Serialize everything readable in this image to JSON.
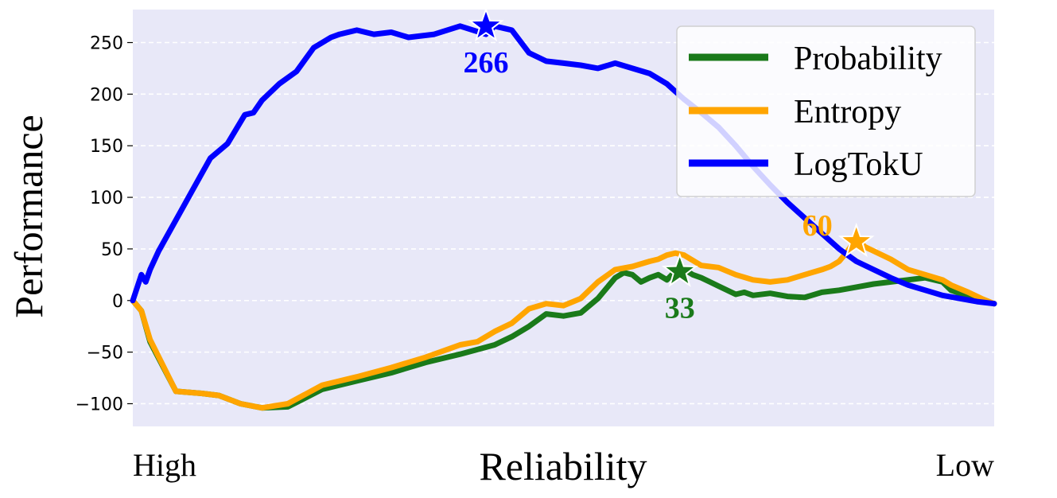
{
  "chart_data": {
    "type": "line",
    "xlabel": "Reliability",
    "x_end_labels": {
      "left": "High",
      "right": "Low"
    },
    "ylabel": "Performance",
    "ylim": [
      -122,
      282
    ],
    "yticks": [
      -100,
      -50,
      0,
      50,
      100,
      150,
      200,
      250
    ],
    "ytick_labels": [
      "−100",
      "−50",
      "0",
      "50",
      "100",
      "150",
      "200",
      "250"
    ],
    "grid": "horizontal dashed",
    "legend_position": "upper-right",
    "x_domain": [
      0,
      1
    ],
    "colors": {
      "background": "#e8e8f8",
      "Probability": "#1a7a1a",
      "Entropy": "#ffa500",
      "LogTokU": "#0000ff"
    },
    "series": [
      {
        "name": "Probability",
        "color": "#1a7a1a",
        "x": [
          0.0,
          0.01,
          0.02,
          0.05,
          0.08,
          0.1,
          0.125,
          0.15,
          0.18,
          0.22,
          0.26,
          0.3,
          0.34,
          0.38,
          0.42,
          0.44,
          0.46,
          0.48,
          0.5,
          0.52,
          0.54,
          0.56,
          0.57,
          0.58,
          0.59,
          0.6,
          0.61,
          0.62,
          0.635,
          0.65,
          0.66,
          0.68,
          0.7,
          0.71,
          0.72,
          0.74,
          0.76,
          0.78,
          0.8,
          0.82,
          0.84,
          0.86,
          0.88,
          0.9,
          0.92,
          0.94,
          0.95,
          0.97,
          0.985,
          1.0
        ],
        "y": [
          0,
          -10,
          -40,
          -88,
          -90,
          -92,
          -100,
          -104,
          -103,
          -86,
          -78,
          -70,
          -60,
          -52,
          -43,
          -35,
          -25,
          -13,
          -15,
          -12,
          2,
          22,
          27,
          25,
          18,
          22,
          25,
          20,
          33,
          25,
          22,
          14,
          6,
          8,
          5,
          7,
          4,
          3,
          8,
          10,
          13,
          16,
          18,
          20,
          22,
          18,
          10,
          4,
          0,
          -3
        ]
      },
      {
        "name": "Entropy",
        "color": "#ffa500",
        "x": [
          0.0,
          0.01,
          0.02,
          0.05,
          0.08,
          0.1,
          0.125,
          0.15,
          0.18,
          0.22,
          0.26,
          0.3,
          0.34,
          0.38,
          0.4,
          0.42,
          0.44,
          0.46,
          0.48,
          0.5,
          0.52,
          0.54,
          0.56,
          0.58,
          0.6,
          0.61,
          0.62,
          0.63,
          0.64,
          0.66,
          0.68,
          0.7,
          0.72,
          0.74,
          0.76,
          0.78,
          0.8,
          0.81,
          0.82,
          0.83,
          0.84,
          0.85,
          0.86,
          0.88,
          0.9,
          0.92,
          0.94,
          0.95,
          0.97,
          0.985,
          1.0
        ],
        "y": [
          0,
          -10,
          -38,
          -88,
          -90,
          -92,
          -100,
          -104,
          -100,
          -82,
          -74,
          -65,
          -55,
          -43,
          -40,
          -30,
          -22,
          -8,
          -3,
          -5,
          2,
          18,
          30,
          33,
          38,
          40,
          44,
          46,
          44,
          34,
          32,
          25,
          20,
          18,
          20,
          25,
          30,
          33,
          38,
          48,
          60,
          52,
          48,
          40,
          30,
          25,
          20,
          15,
          8,
          2,
          -3
        ]
      },
      {
        "name": "LogTokU",
        "color": "#0000ff",
        "x": [
          0.0,
          0.01,
          0.015,
          0.02,
          0.03,
          0.05,
          0.07,
          0.09,
          0.11,
          0.13,
          0.14,
          0.15,
          0.17,
          0.19,
          0.21,
          0.23,
          0.24,
          0.26,
          0.28,
          0.3,
          0.32,
          0.35,
          0.38,
          0.41,
          0.42,
          0.44,
          0.46,
          0.48,
          0.5,
          0.52,
          0.54,
          0.56,
          0.58,
          0.6,
          0.62,
          0.64,
          0.66,
          0.68,
          0.7,
          0.72,
          0.74,
          0.76,
          0.78,
          0.8,
          0.82,
          0.84,
          0.86,
          0.88,
          0.9,
          0.92,
          0.94,
          0.96,
          0.98,
          1.0
        ],
        "y": [
          0,
          25,
          18,
          30,
          48,
          78,
          108,
          138,
          152,
          180,
          182,
          194,
          210,
          222,
          245,
          255,
          258,
          262,
          258,
          260,
          255,
          258,
          266,
          258,
          266,
          262,
          240,
          232,
          230,
          228,
          225,
          230,
          225,
          220,
          210,
          195,
          182,
          168,
          150,
          130,
          112,
          95,
          80,
          65,
          50,
          38,
          30,
          22,
          15,
          10,
          5,
          2,
          -1,
          -3
        ]
      }
    ],
    "annotations": [
      {
        "series": "LogTokU",
        "x": 0.41,
        "y": 266,
        "label": "266",
        "color": "#0000ff",
        "label_pos": "below"
      },
      {
        "series": "Probability",
        "x": 0.635,
        "y": 28,
        "label": "33",
        "color": "#1a7a1a",
        "label_pos": "below"
      },
      {
        "series": "Entropy",
        "x": 0.84,
        "y": 57,
        "label": "60",
        "color": "#ffa500",
        "label_pos": "left"
      }
    ]
  }
}
